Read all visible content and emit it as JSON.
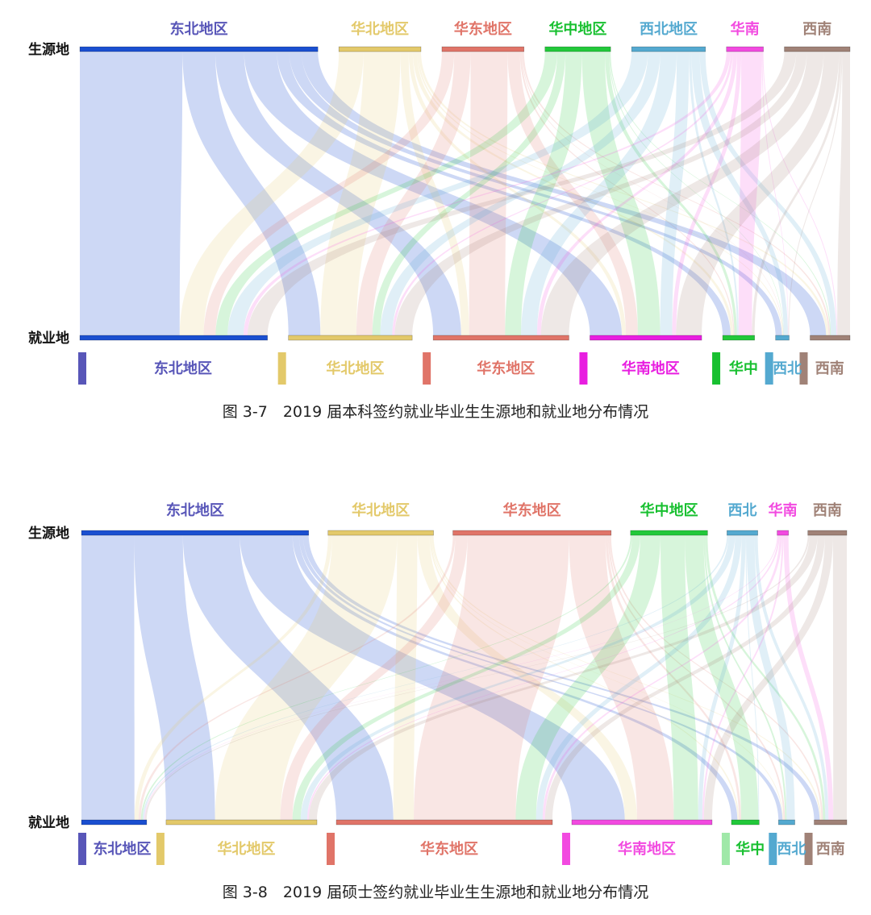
{
  "figures": [
    {
      "id": "fig1",
      "row_labels": {
        "source": "生源地",
        "employment": "就业地"
      },
      "caption": "图 3-7　2019 届本科签约就业毕业生生源地和就业地分布情况",
      "sources": [
        {
          "label": "东北地区",
          "color": "#1a4fd0",
          "label_color": "#5856b8",
          "weight": 29
        },
        {
          "label": "华北地区",
          "color": "#e3c96a",
          "label_color": "#e3c96a",
          "weight": 10
        },
        {
          "label": "华东地区",
          "color": "#e07468",
          "label_color": "#e07468",
          "weight": 10
        },
        {
          "label": "华中地区",
          "color": "#22c83a",
          "label_color": "#18c030",
          "weight": 8
        },
        {
          "label": "西北地区",
          "color": "#54a9d0",
          "label_color": "#54a9d0",
          "weight": 9
        },
        {
          "label": "华南",
          "color": "#f24ae0",
          "label_color": "#f24ae0",
          "weight": 4.5
        },
        {
          "label": "西南",
          "color": "#a08277",
          "label_color": "#a08277",
          "weight": 8
        }
      ],
      "targets": [
        {
          "label": "东北地区",
          "color": "#1a4fd0",
          "legend_color": "#5856b8",
          "label_color": "#5856b8",
          "weight": 23.5
        },
        {
          "label": "华北地区",
          "color": "#e3c96a",
          "legend_color": "#e3c96a",
          "label_color": "#e3c96a",
          "weight": 15.5
        },
        {
          "label": "华东地区",
          "color": "#e07468",
          "legend_color": "#e07468",
          "label_color": "#e07468",
          "weight": 17
        },
        {
          "label": "华南地区",
          "color": "#e81ee0",
          "legend_color": "#e81ee0",
          "label_color": "#e81ee0",
          "weight": 14
        },
        {
          "label": "华中",
          "color": "#22c83a",
          "legend_color": "#18c030",
          "label_color": "#18c030",
          "weight": 4
        },
        {
          "label": "西北",
          "color": "#54a9d0",
          "legend_color": "#54a9d0",
          "label_color": "#54a9d0",
          "weight": 1.7
        },
        {
          "label": "西南",
          "color": "#a08277",
          "legend_color": "#a08277",
          "label_color": "#a08277",
          "weight": 5
        }
      ],
      "flows": [
        [
          12.5,
          4.0,
          3.5,
          4.0,
          1.5,
          1.5,
          2.0
        ],
        [
          3.0,
          4.5,
          1.0,
          0.5,
          0.5,
          0.2,
          0.3
        ],
        [
          1.5,
          2.0,
          4.5,
          1.5,
          0.2,
          0.1,
          0.2
        ],
        [
          1.5,
          1.0,
          2.0,
          2.8,
          0.5,
          0.1,
          0.1
        ],
        [
          2.0,
          1.5,
          2.0,
          1.5,
          0.3,
          1.0,
          0.7
        ],
        [
          0.5,
          0.3,
          0.5,
          0.5,
          2.5,
          0.1,
          0.1
        ],
        [
          2.5,
          2.2,
          3.5,
          3.2,
          0.5,
          0.2,
          1.6
        ]
      ]
    },
    {
      "id": "fig2",
      "row_labels": {
        "source": "生源地",
        "employment": "就业地"
      },
      "caption": "图 3-8　2019 届硕士签约就业毕业生生源地和就业地分布情况",
      "sources": [
        {
          "label": "东北地区",
          "color": "#1a4fd0",
          "label_color": "#5856b8",
          "weight": 28
        },
        {
          "label": "华北地区",
          "color": "#e3c96a",
          "label_color": "#e3c96a",
          "weight": 13
        },
        {
          "label": "华东地区",
          "color": "#e07468",
          "label_color": "#e07468",
          "weight": 19.5
        },
        {
          "label": "华中地区",
          "color": "#22c83a",
          "label_color": "#18c030",
          "weight": 9.5
        },
        {
          "label": "西北",
          "color": "#54a9d0",
          "label_color": "#54a9d0",
          "weight": 3.8
        },
        {
          "label": "华南",
          "color": "#f24ae0",
          "label_color": "#f24ae0",
          "weight": 1.4
        },
        {
          "label": "西南",
          "color": "#a08277",
          "label_color": "#a08277",
          "weight": 4.8
        }
      ],
      "targets": [
        {
          "label": "东北地区",
          "color": "#1a4fd0",
          "legend_color": "#5856b8",
          "label_color": "#5856b8",
          "weight": 8
        },
        {
          "label": "华北地区",
          "color": "#e3c96a",
          "legend_color": "#e3c96a",
          "label_color": "#e3c96a",
          "weight": 18.5
        },
        {
          "label": "华东地区",
          "color": "#e07468",
          "legend_color": "#e07468",
          "label_color": "#e07468",
          "weight": 26.5
        },
        {
          "label": "华南地区",
          "color": "#f24ae0",
          "legend_color": "#f24ae0",
          "label_color": "#f24ae0",
          "weight": 17.2
        },
        {
          "label": "华中",
          "color": "#22c83a",
          "legend_color": "#9fe8a8",
          "label_color": "#18c030",
          "weight": 3.4
        },
        {
          "label": "西北",
          "color": "#54a9d0",
          "legend_color": "#54a9d0",
          "label_color": "#54a9d0",
          "weight": 2
        },
        {
          "label": "西南",
          "color": "#a08277",
          "legend_color": "#a08277",
          "label_color": "#a08277",
          "weight": 4
        }
      ],
      "flows": [
        [
          6.5,
          6.0,
          7.0,
          6.5,
          0.8,
          0.5,
          0.7
        ],
        [
          0.5,
          8.0,
          2.5,
          1.5,
          0.2,
          0.1,
          0.2
        ],
        [
          0.3,
          1.5,
          12.5,
          4.5,
          0.3,
          0.2,
          0.2
        ],
        [
          0.2,
          1.0,
          2.5,
          3.0,
          2.3,
          0.2,
          0.3
        ],
        [
          0.2,
          0.8,
          0.8,
          0.5,
          0.1,
          1.0,
          0.4
        ],
        [
          0.1,
          0.2,
          0.3,
          0.2,
          0.0,
          0.0,
          0.6
        ],
        [
          0.2,
          1.0,
          0.9,
          1.0,
          0.0,
          0.0,
          1.7
        ]
      ]
    }
  ]
}
